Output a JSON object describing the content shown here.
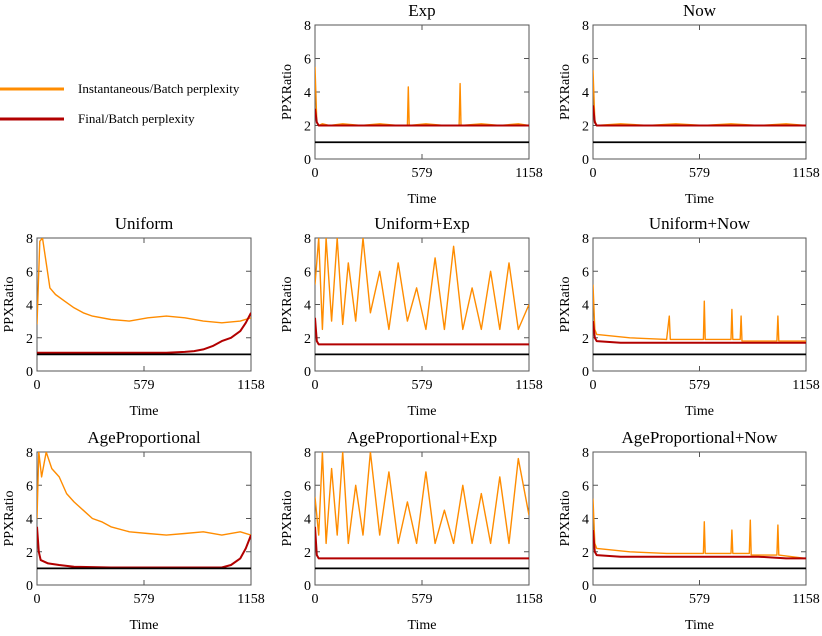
{
  "legend": {
    "items": [
      {
        "label": "Instantaneous/Batch perplexity",
        "color": "#ff8c00"
      },
      {
        "label": "Final/Batch perplexity",
        "color": "#b20000"
      }
    ]
  },
  "chart_data": [
    {
      "type": "line",
      "title": "Exp",
      "xlabel": "Time",
      "ylabel": "PPXRatio",
      "xlim": [
        0,
        1158
      ],
      "ylim": [
        0,
        8
      ],
      "xticks": [
        0,
        579,
        1158
      ],
      "yticks": [
        0,
        2,
        4,
        6,
        8
      ],
      "reference_line": 1,
      "series": [
        {
          "name": "Instantaneous/Batch perplexity",
          "color": "#ff8c00",
          "x": [
            0,
            10,
            20,
            40,
            80,
            150,
            250,
            350,
            450,
            500,
            505,
            510,
            600,
            700,
            780,
            785,
            790,
            900,
            1000,
            1100,
            1158
          ],
          "y": [
            5.5,
            2.2,
            2.0,
            2.1,
            2.0,
            2.1,
            2.0,
            2.1,
            2.0,
            2.0,
            4.3,
            2.0,
            2.1,
            2.0,
            2.0,
            4.5,
            2.0,
            2.1,
            2.0,
            2.1,
            2.0
          ]
        },
        {
          "name": "Final/Batch perplexity",
          "color": "#b20000",
          "x": [
            0,
            10,
            20,
            150,
            300,
            450,
            600,
            750,
            900,
            1050,
            1158
          ],
          "y": [
            3.0,
            2.2,
            2.0,
            2.0,
            2.0,
            2.0,
            2.0,
            2.0,
            2.0,
            2.0,
            2.0
          ]
        }
      ]
    },
    {
      "type": "line",
      "title": "Now",
      "xlabel": "Time",
      "ylabel": "PPXRatio",
      "xlim": [
        0,
        1158
      ],
      "ylim": [
        0,
        8
      ],
      "xticks": [
        0,
        579,
        1158
      ],
      "yticks": [
        0,
        2,
        4,
        6,
        8
      ],
      "reference_line": 1,
      "series": [
        {
          "name": "Instantaneous/Batch perplexity",
          "color": "#ff8c00",
          "x": [
            0,
            10,
            20,
            150,
            300,
            450,
            600,
            750,
            900,
            1050,
            1158
          ],
          "y": [
            5.3,
            2.3,
            2.0,
            2.1,
            2.0,
            2.1,
            2.0,
            2.1,
            2.0,
            2.1,
            2.0
          ]
        },
        {
          "name": "Final/Batch perplexity",
          "color": "#b20000",
          "x": [
            0,
            10,
            20,
            150,
            300,
            450,
            600,
            750,
            900,
            1050,
            1158
          ],
          "y": [
            3.2,
            2.2,
            2.0,
            2.0,
            2.0,
            2.0,
            2.0,
            2.0,
            2.0,
            2.0,
            2.0
          ]
        }
      ]
    },
    {
      "type": "line",
      "title": "Uniform",
      "xlabel": "Time",
      "ylabel": "PPXRatio",
      "xlim": [
        0,
        1158
      ],
      "ylim": [
        0,
        8
      ],
      "xticks": [
        0,
        579,
        1158
      ],
      "yticks": [
        0,
        2,
        4,
        6,
        8
      ],
      "reference_line": 1,
      "series": [
        {
          "name": "Instantaneous/Batch perplexity",
          "color": "#ff8c00",
          "x": [
            0,
            15,
            30,
            50,
            70,
            100,
            150,
            200,
            250,
            300,
            400,
            500,
            600,
            700,
            800,
            900,
            1000,
            1100,
            1158
          ],
          "y": [
            2.8,
            7.8,
            8.0,
            6.5,
            5.0,
            4.6,
            4.2,
            3.8,
            3.5,
            3.3,
            3.1,
            3.0,
            3.2,
            3.3,
            3.2,
            3.0,
            2.9,
            3.0,
            3.2
          ]
        },
        {
          "name": "Final/Batch perplexity",
          "color": "#b20000",
          "x": [
            0,
            100,
            300,
            500,
            700,
            800,
            850,
            900,
            950,
            1000,
            1050,
            1100,
            1130,
            1158
          ],
          "y": [
            1.1,
            1.1,
            1.1,
            1.1,
            1.1,
            1.15,
            1.2,
            1.3,
            1.5,
            1.8,
            2.0,
            2.4,
            2.9,
            3.5
          ]
        }
      ]
    },
    {
      "type": "line",
      "title": "Uniform+Exp",
      "xlabel": "Time",
      "ylabel": "PPXRatio",
      "xlim": [
        0,
        1158
      ],
      "ylim": [
        0,
        8
      ],
      "xticks": [
        0,
        579,
        1158
      ],
      "yticks": [
        0,
        2,
        4,
        6,
        8
      ],
      "reference_line": 1,
      "series": [
        {
          "name": "Instantaneous/Batch perplexity",
          "color": "#ff8c00",
          "x": [
            0,
            20,
            40,
            60,
            90,
            120,
            150,
            180,
            220,
            260,
            300,
            350,
            400,
            450,
            500,
            550,
            600,
            650,
            700,
            750,
            800,
            850,
            900,
            950,
            1000,
            1050,
            1100,
            1158
          ],
          "y": [
            5.2,
            8.0,
            2.5,
            8.0,
            3.0,
            8.0,
            2.8,
            6.5,
            3.0,
            8.0,
            3.5,
            6.0,
            2.5,
            6.5,
            3.0,
            5.0,
            2.5,
            6.8,
            2.5,
            7.5,
            2.5,
            5.0,
            2.5,
            6.0,
            2.5,
            6.5,
            2.5,
            4.0
          ]
        },
        {
          "name": "Final/Batch perplexity",
          "color": "#b20000",
          "x": [
            0,
            10,
            20,
            150,
            300,
            450,
            600,
            750,
            900,
            1050,
            1158
          ],
          "y": [
            3.2,
            1.8,
            1.6,
            1.6,
            1.6,
            1.6,
            1.6,
            1.6,
            1.6,
            1.6,
            1.6
          ]
        }
      ]
    },
    {
      "type": "line",
      "title": "Uniform+Now",
      "xlabel": "Time",
      "ylabel": "PPXRatio",
      "xlim": [
        0,
        1158
      ],
      "ylim": [
        0,
        8
      ],
      "xticks": [
        0,
        579,
        1158
      ],
      "yticks": [
        0,
        2,
        4,
        6,
        8
      ],
      "reference_line": 1,
      "series": [
        {
          "name": "Instantaneous/Batch perplexity",
          "color": "#ff8c00",
          "x": [
            0,
            10,
            20,
            200,
            400,
            415,
            420,
            600,
            605,
            610,
            750,
            755,
            760,
            800,
            805,
            810,
            1000,
            1005,
            1010,
            1158
          ],
          "y": [
            5.2,
            2.5,
            2.2,
            2.0,
            1.9,
            3.3,
            1.9,
            1.9,
            4.2,
            1.9,
            1.9,
            3.7,
            1.9,
            1.9,
            3.3,
            1.8,
            1.8,
            3.3,
            1.8,
            1.8
          ]
        },
        {
          "name": "Final/Batch perplexity",
          "color": "#b20000",
          "x": [
            0,
            10,
            20,
            150,
            300,
            450,
            600,
            750,
            900,
            1050,
            1158
          ],
          "y": [
            3.0,
            2.0,
            1.8,
            1.7,
            1.7,
            1.7,
            1.7,
            1.7,
            1.7,
            1.7,
            1.7
          ]
        }
      ]
    },
    {
      "type": "line",
      "title": "AgeProportional",
      "xlabel": "Time",
      "ylabel": "PPXRatio",
      "xlim": [
        0,
        1158
      ],
      "ylim": [
        0,
        8
      ],
      "xticks": [
        0,
        579,
        1158
      ],
      "yticks": [
        0,
        2,
        4,
        6,
        8
      ],
      "reference_line": 1,
      "series": [
        {
          "name": "Instantaneous/Batch perplexity",
          "color": "#ff8c00",
          "x": [
            0,
            10,
            25,
            50,
            80,
            120,
            160,
            200,
            250,
            300,
            350,
            400,
            500,
            600,
            700,
            800,
            900,
            1000,
            1100,
            1158
          ],
          "y": [
            4.0,
            8.0,
            6.5,
            8.0,
            7.0,
            6.5,
            5.5,
            5.0,
            4.5,
            4.0,
            3.8,
            3.5,
            3.2,
            3.1,
            3.0,
            3.1,
            3.2,
            3.0,
            3.2,
            3.0
          ]
        },
        {
          "name": "Final/Batch perplexity",
          "color": "#b20000",
          "x": [
            0,
            10,
            20,
            60,
            120,
            200,
            400,
            600,
            800,
            1000,
            1050,
            1100,
            1130,
            1158
          ],
          "y": [
            3.5,
            2.0,
            1.5,
            1.3,
            1.2,
            1.1,
            1.05,
            1.05,
            1.05,
            1.05,
            1.2,
            1.6,
            2.2,
            3.0
          ]
        }
      ]
    },
    {
      "type": "line",
      "title": "AgeProportional+Exp",
      "xlabel": "Time",
      "ylabel": "PPXRatio",
      "xlim": [
        0,
        1158
      ],
      "ylim": [
        0,
        8
      ],
      "xticks": [
        0,
        579,
        1158
      ],
      "yticks": [
        0,
        2,
        4,
        6,
        8
      ],
      "reference_line": 1,
      "series": [
        {
          "name": "Instantaneous/Batch perplexity",
          "color": "#ff8c00",
          "x": [
            0,
            20,
            40,
            60,
            90,
            120,
            150,
            180,
            220,
            260,
            300,
            350,
            400,
            450,
            500,
            550,
            600,
            650,
            700,
            750,
            800,
            850,
            900,
            950,
            1000,
            1050,
            1100,
            1158
          ],
          "y": [
            5.3,
            3.0,
            8.0,
            2.5,
            7.0,
            3.0,
            8.0,
            2.5,
            6.0,
            3.0,
            8.0,
            3.0,
            6.8,
            2.5,
            5.0,
            2.5,
            6.8,
            2.5,
            4.5,
            2.5,
            6.0,
            2.5,
            5.5,
            2.5,
            6.5,
            2.5,
            7.6,
            4.2
          ]
        },
        {
          "name": "Final/Batch perplexity",
          "color": "#b20000",
          "x": [
            0,
            10,
            20,
            150,
            300,
            450,
            600,
            750,
            900,
            1050,
            1158
          ],
          "y": [
            3.5,
            1.8,
            1.6,
            1.6,
            1.6,
            1.6,
            1.6,
            1.6,
            1.6,
            1.6,
            1.6
          ]
        }
      ]
    },
    {
      "type": "line",
      "title": "AgeProportional+Now",
      "xlabel": "Time",
      "ylabel": "PPXRatio",
      "xlim": [
        0,
        1158
      ],
      "ylim": [
        0,
        8
      ],
      "xticks": [
        0,
        579,
        1158
      ],
      "yticks": [
        0,
        2,
        4,
        6,
        8
      ],
      "reference_line": 1,
      "series": [
        {
          "name": "Instantaneous/Batch perplexity",
          "color": "#ff8c00",
          "x": [
            0,
            10,
            20,
            200,
            400,
            600,
            605,
            610,
            750,
            755,
            760,
            850,
            855,
            860,
            1000,
            1005,
            1010,
            1158
          ],
          "y": [
            5.2,
            2.5,
            2.2,
            2.0,
            1.9,
            1.9,
            3.8,
            1.9,
            1.9,
            3.3,
            1.9,
            1.9,
            3.9,
            1.8,
            1.8,
            3.6,
            1.8,
            1.6
          ]
        },
        {
          "name": "Final/Batch perplexity",
          "color": "#b20000",
          "x": [
            0,
            10,
            20,
            150,
            300,
            450,
            600,
            750,
            900,
            1050,
            1158
          ],
          "y": [
            3.3,
            2.0,
            1.8,
            1.7,
            1.7,
            1.7,
            1.7,
            1.7,
            1.7,
            1.6,
            1.6
          ]
        }
      ]
    }
  ]
}
